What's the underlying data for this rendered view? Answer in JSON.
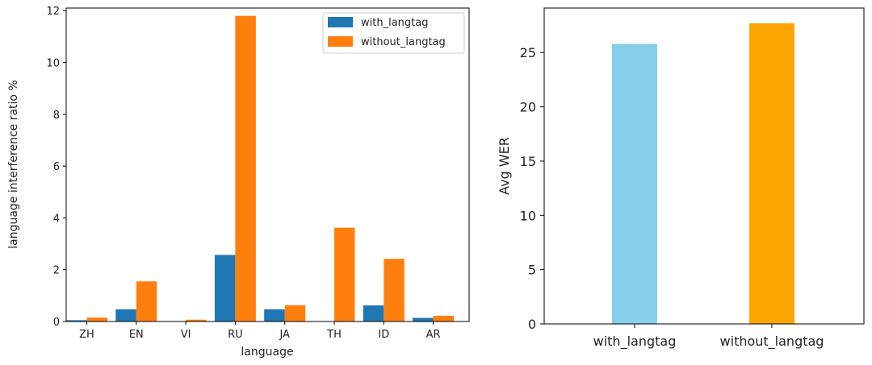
{
  "chart_data": [
    {
      "type": "bar",
      "xlabel": "language",
      "ylabel": "language interference ratio %",
      "categories": [
        "ZH",
        "EN",
        "VI",
        "RU",
        "JA",
        "TH",
        "ID",
        "AR"
      ],
      "series": [
        {
          "name": "with_langtag",
          "color": "#1f77b4",
          "values": [
            0.05,
            0.47,
            0.0,
            2.57,
            0.47,
            0.0,
            0.62,
            0.14
          ]
        },
        {
          "name": "without_langtag",
          "color": "#ff7f0e",
          "values": [
            0.15,
            1.55,
            0.07,
            11.8,
            0.63,
            3.62,
            2.42,
            0.22
          ]
        }
      ],
      "ylim": [
        0,
        12.1
      ],
      "yticks": [
        0,
        2,
        4,
        6,
        8,
        10,
        12
      ],
      "legend": "top-right",
      "grid": false
    },
    {
      "type": "bar",
      "xlabel": "",
      "ylabel": "Avg WER",
      "categories": [
        "with_langtag",
        "without_langtag"
      ],
      "values": [
        25.8,
        27.7
      ],
      "colors": [
        "#87ceeb",
        "#ffa500"
      ],
      "ylim": [
        0,
        29.1
      ],
      "yticks": [
        0,
        5,
        10,
        15,
        20,
        25
      ],
      "grid": false
    }
  ]
}
